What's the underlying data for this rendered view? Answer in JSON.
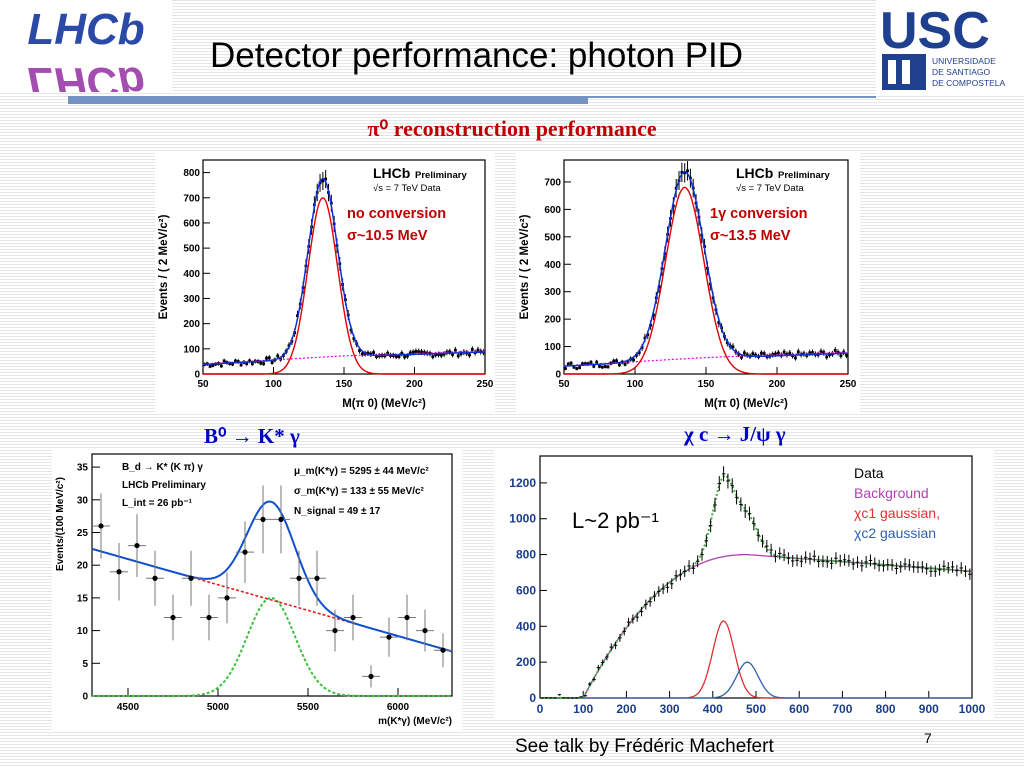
{
  "slide": {
    "title": "Detector performance: photon PID",
    "section_heading": "π⁰ reconstruction performance",
    "footer": "See talk by Frédéric Machefert",
    "page_number": "7"
  },
  "logos": {
    "left": "LHCb",
    "right_main": "USC",
    "right_sub": [
      "UNIVERSIDADE",
      "DE SANTIAGO",
      "DE COMPOSTELA"
    ]
  },
  "panel_labels": {
    "b0": "B⁰ → K* γ",
    "chic": "χ c → J/ψ γ"
  },
  "colors": {
    "title_rule": "#7393c4",
    "section_heading": "#c00000",
    "panel_label": "#0000c8"
  },
  "chart_data": [
    {
      "id": "pi0_noconv",
      "type": "line",
      "tag_main": "LHCb",
      "tag_sub": "Preliminary",
      "energy": "√s = 7 TeV Data",
      "annotation": [
        "no conversion",
        "σ~10.5 MeV"
      ],
      "ylabel": "Events / ( 2 MeV/c²)",
      "xlabel": "M(π 0) (MeV/c²)",
      "xlim": [
        50,
        250
      ],
      "ylim": [
        0,
        850
      ],
      "xticks": [
        50,
        100,
        150,
        200,
        250
      ],
      "yticks": [
        0,
        100,
        200,
        300,
        400,
        500,
        600,
        700,
        800
      ],
      "signal": {
        "mean": 135,
        "sigma": 10.5,
        "amplitude": 700
      },
      "background": [
        [
          50,
          40
        ],
        [
          150,
          72
        ],
        [
          250,
          92
        ]
      ],
      "data_peak": 780,
      "legend_position": "top-right"
    },
    {
      "id": "pi0_conv",
      "type": "line",
      "tag_main": "LHCb",
      "tag_sub": "Preliminary",
      "energy": "√s = 7 TeV Data",
      "annotation": [
        "1γ conversion",
        "σ~13.5 MeV"
      ],
      "ylabel": "Events / ( 2 MeV/c²)",
      "xlabel": "M(π 0) (MeV/c²)",
      "xlim": [
        50,
        250
      ],
      "ylim": [
        0,
        780
      ],
      "xticks": [
        50,
        100,
        150,
        200,
        250
      ],
      "yticks": [
        0,
        100,
        200,
        300,
        400,
        500,
        600,
        700
      ],
      "signal": {
        "mean": 135,
        "sigma": 13.5,
        "amplitude": 680
      },
      "background": [
        [
          50,
          30
        ],
        [
          150,
          60
        ],
        [
          250,
          80
        ]
      ],
      "data_peak": 740,
      "legend_position": "top-right"
    },
    {
      "id": "b0",
      "type": "scatter",
      "tag_line1": "B_d → K* (K π) γ",
      "tag_line2": "LHCb Preliminary",
      "tag_line3": "L_int = 26 pb⁻¹",
      "fit_params": [
        "μ_m(K*γ) = 5295 ± 44 MeV/c²",
        "σ_m(K*γ) = 133 ± 55 MeV/c²",
        "N_signal = 49 ± 17"
      ],
      "ylabel": "Events/(100 MeV/c²)",
      "xlabel": "m(K*γ) (MeV/c²)",
      "xlim": [
        4300,
        6300
      ],
      "ylim": [
        0,
        37
      ],
      "xticks": [
        4500,
        5000,
        5500,
        6000
      ],
      "yticks": [
        0,
        5,
        10,
        15,
        20,
        25,
        30,
        35
      ],
      "x": [
        4350,
        4450,
        4550,
        4650,
        4750,
        4850,
        4950,
        5050,
        5150,
        5250,
        5350,
        5450,
        5550,
        5650,
        5750,
        5850,
        5950,
        6050,
        6150,
        6250
      ],
      "y": [
        26,
        19,
        23,
        18,
        12,
        18,
        12,
        15,
        22,
        27,
        27,
        18,
        18,
        10,
        12,
        3,
        9,
        12,
        10,
        7
      ],
      "yerr": [
        5,
        4.4,
        4.8,
        4.2,
        3.5,
        4.2,
        3.5,
        3.9,
        4.7,
        5.2,
        5.2,
        4.2,
        4.2,
        3.2,
        3.5,
        1.7,
        3,
        3.5,
        3.2,
        2.6
      ],
      "signal": {
        "mean": 5295,
        "sigma": 133,
        "amplitude": 15
      },
      "background": {
        "x0": 4300,
        "y0": 22.5,
        "slope_per_mev": -0.00784
      },
      "legend_position": "top"
    },
    {
      "id": "chic",
      "type": "scatter",
      "label": "L~2 pb⁻¹",
      "legend": [
        "Data",
        "Background",
        "χc1 gaussian,",
        "χc2 gaussian"
      ],
      "legend_colors": [
        "#000000",
        "#b040b0",
        "#e03030",
        "#3060b0"
      ],
      "xlim": [
        0,
        1000
      ],
      "ylim": [
        0,
        1350
      ],
      "xticks": [
        0,
        100,
        200,
        300,
        400,
        500,
        600,
        700,
        800,
        900,
        1000
      ],
      "yticks": [
        0,
        200,
        400,
        600,
        800,
        1000,
        1200
      ],
      "chic1": {
        "mean": 425,
        "sigma": 25,
        "amplitude": 430
      },
      "chic2": {
        "mean": 480,
        "sigma": 25,
        "amplitude": 200
      },
      "data_peak": 1250,
      "legend_position": "top-right"
    }
  ]
}
